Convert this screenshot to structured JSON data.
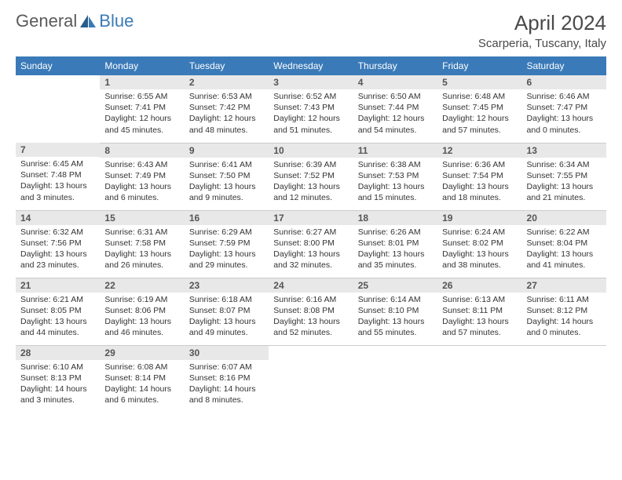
{
  "brand": {
    "part1": "General",
    "part2": "Blue"
  },
  "title": "April 2024",
  "location": "Scarperia, Tuscany, Italy",
  "colors": {
    "header_bg": "#3a7ab8",
    "header_text": "#ffffff",
    "daynum_bg": "#e8e8e8",
    "daynum_text": "#555555",
    "body_text": "#333333",
    "border": "#cccccc",
    "logo_gray": "#5a5a5a",
    "logo_blue": "#3a7ab8",
    "title_color": "#4a4a4a",
    "bg": "#ffffff"
  },
  "day_headers": [
    "Sunday",
    "Monday",
    "Tuesday",
    "Wednesday",
    "Thursday",
    "Friday",
    "Saturday"
  ],
  "weeks": [
    [
      {
        "day": "",
        "sunrise": "",
        "sunset": "",
        "daylight": ""
      },
      {
        "day": "1",
        "sunrise": "Sunrise: 6:55 AM",
        "sunset": "Sunset: 7:41 PM",
        "daylight": "Daylight: 12 hours and 45 minutes."
      },
      {
        "day": "2",
        "sunrise": "Sunrise: 6:53 AM",
        "sunset": "Sunset: 7:42 PM",
        "daylight": "Daylight: 12 hours and 48 minutes."
      },
      {
        "day": "3",
        "sunrise": "Sunrise: 6:52 AM",
        "sunset": "Sunset: 7:43 PM",
        "daylight": "Daylight: 12 hours and 51 minutes."
      },
      {
        "day": "4",
        "sunrise": "Sunrise: 6:50 AM",
        "sunset": "Sunset: 7:44 PM",
        "daylight": "Daylight: 12 hours and 54 minutes."
      },
      {
        "day": "5",
        "sunrise": "Sunrise: 6:48 AM",
        "sunset": "Sunset: 7:45 PM",
        "daylight": "Daylight: 12 hours and 57 minutes."
      },
      {
        "day": "6",
        "sunrise": "Sunrise: 6:46 AM",
        "sunset": "Sunset: 7:47 PM",
        "daylight": "Daylight: 13 hours and 0 minutes."
      }
    ],
    [
      {
        "day": "7",
        "sunrise": "Sunrise: 6:45 AM",
        "sunset": "Sunset: 7:48 PM",
        "daylight": "Daylight: 13 hours and 3 minutes."
      },
      {
        "day": "8",
        "sunrise": "Sunrise: 6:43 AM",
        "sunset": "Sunset: 7:49 PM",
        "daylight": "Daylight: 13 hours and 6 minutes."
      },
      {
        "day": "9",
        "sunrise": "Sunrise: 6:41 AM",
        "sunset": "Sunset: 7:50 PM",
        "daylight": "Daylight: 13 hours and 9 minutes."
      },
      {
        "day": "10",
        "sunrise": "Sunrise: 6:39 AM",
        "sunset": "Sunset: 7:52 PM",
        "daylight": "Daylight: 13 hours and 12 minutes."
      },
      {
        "day": "11",
        "sunrise": "Sunrise: 6:38 AM",
        "sunset": "Sunset: 7:53 PM",
        "daylight": "Daylight: 13 hours and 15 minutes."
      },
      {
        "day": "12",
        "sunrise": "Sunrise: 6:36 AM",
        "sunset": "Sunset: 7:54 PM",
        "daylight": "Daylight: 13 hours and 18 minutes."
      },
      {
        "day": "13",
        "sunrise": "Sunrise: 6:34 AM",
        "sunset": "Sunset: 7:55 PM",
        "daylight": "Daylight: 13 hours and 21 minutes."
      }
    ],
    [
      {
        "day": "14",
        "sunrise": "Sunrise: 6:32 AM",
        "sunset": "Sunset: 7:56 PM",
        "daylight": "Daylight: 13 hours and 23 minutes."
      },
      {
        "day": "15",
        "sunrise": "Sunrise: 6:31 AM",
        "sunset": "Sunset: 7:58 PM",
        "daylight": "Daylight: 13 hours and 26 minutes."
      },
      {
        "day": "16",
        "sunrise": "Sunrise: 6:29 AM",
        "sunset": "Sunset: 7:59 PM",
        "daylight": "Daylight: 13 hours and 29 minutes."
      },
      {
        "day": "17",
        "sunrise": "Sunrise: 6:27 AM",
        "sunset": "Sunset: 8:00 PM",
        "daylight": "Daylight: 13 hours and 32 minutes."
      },
      {
        "day": "18",
        "sunrise": "Sunrise: 6:26 AM",
        "sunset": "Sunset: 8:01 PM",
        "daylight": "Daylight: 13 hours and 35 minutes."
      },
      {
        "day": "19",
        "sunrise": "Sunrise: 6:24 AM",
        "sunset": "Sunset: 8:02 PM",
        "daylight": "Daylight: 13 hours and 38 minutes."
      },
      {
        "day": "20",
        "sunrise": "Sunrise: 6:22 AM",
        "sunset": "Sunset: 8:04 PM",
        "daylight": "Daylight: 13 hours and 41 minutes."
      }
    ],
    [
      {
        "day": "21",
        "sunrise": "Sunrise: 6:21 AM",
        "sunset": "Sunset: 8:05 PM",
        "daylight": "Daylight: 13 hours and 44 minutes."
      },
      {
        "day": "22",
        "sunrise": "Sunrise: 6:19 AM",
        "sunset": "Sunset: 8:06 PM",
        "daylight": "Daylight: 13 hours and 46 minutes."
      },
      {
        "day": "23",
        "sunrise": "Sunrise: 6:18 AM",
        "sunset": "Sunset: 8:07 PM",
        "daylight": "Daylight: 13 hours and 49 minutes."
      },
      {
        "day": "24",
        "sunrise": "Sunrise: 6:16 AM",
        "sunset": "Sunset: 8:08 PM",
        "daylight": "Daylight: 13 hours and 52 minutes."
      },
      {
        "day": "25",
        "sunrise": "Sunrise: 6:14 AM",
        "sunset": "Sunset: 8:10 PM",
        "daylight": "Daylight: 13 hours and 55 minutes."
      },
      {
        "day": "26",
        "sunrise": "Sunrise: 6:13 AM",
        "sunset": "Sunset: 8:11 PM",
        "daylight": "Daylight: 13 hours and 57 minutes."
      },
      {
        "day": "27",
        "sunrise": "Sunrise: 6:11 AM",
        "sunset": "Sunset: 8:12 PM",
        "daylight": "Daylight: 14 hours and 0 minutes."
      }
    ],
    [
      {
        "day": "28",
        "sunrise": "Sunrise: 6:10 AM",
        "sunset": "Sunset: 8:13 PM",
        "daylight": "Daylight: 14 hours and 3 minutes."
      },
      {
        "day": "29",
        "sunrise": "Sunrise: 6:08 AM",
        "sunset": "Sunset: 8:14 PM",
        "daylight": "Daylight: 14 hours and 6 minutes."
      },
      {
        "day": "30",
        "sunrise": "Sunrise: 6:07 AM",
        "sunset": "Sunset: 8:16 PM",
        "daylight": "Daylight: 14 hours and 8 minutes."
      },
      {
        "day": "",
        "sunrise": "",
        "sunset": "",
        "daylight": ""
      },
      {
        "day": "",
        "sunrise": "",
        "sunset": "",
        "daylight": ""
      },
      {
        "day": "",
        "sunrise": "",
        "sunset": "",
        "daylight": ""
      },
      {
        "day": "",
        "sunrise": "",
        "sunset": "",
        "daylight": ""
      }
    ]
  ]
}
